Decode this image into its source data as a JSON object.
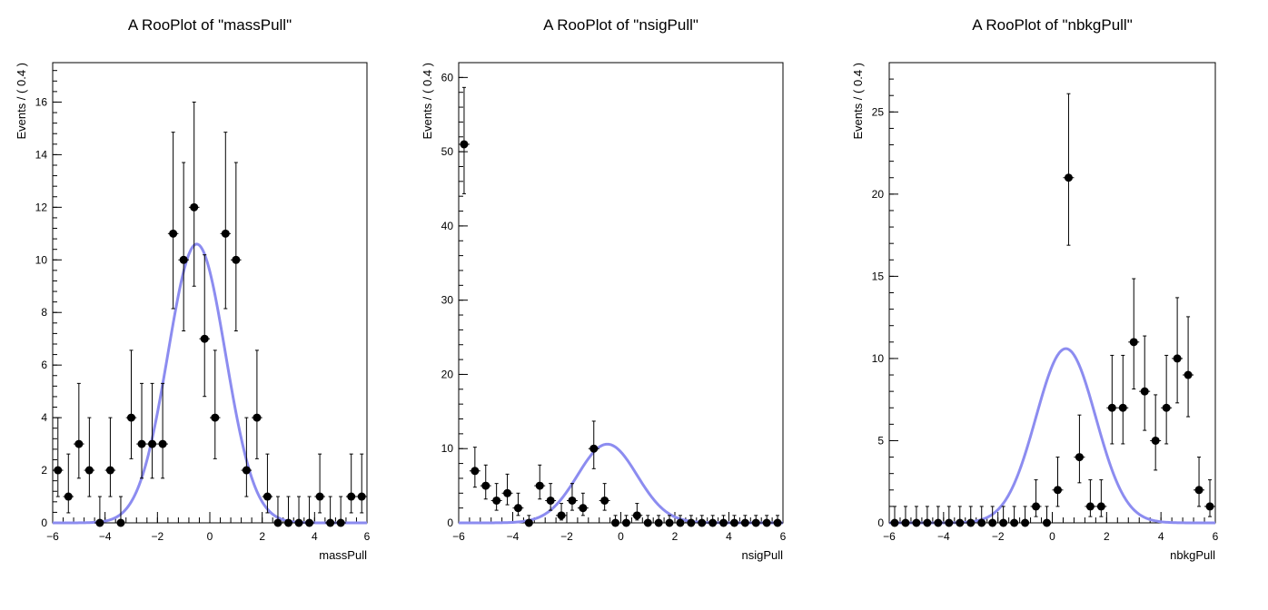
{
  "chart_data": [
    {
      "type": "scatter",
      "title": "A RooPlot of \"massPull\"",
      "xlabel": "massPull",
      "ylabel": "Events / ( 0.4 )",
      "xlim": [
        -6,
        6
      ],
      "ylim": [
        0,
        17.5
      ],
      "xticks": [
        -6,
        -4,
        -2,
        0,
        2,
        4,
        6
      ],
      "yticks": [
        0,
        2,
        4,
        6,
        8,
        10,
        12,
        14,
        16
      ],
      "bin_width": 0.4,
      "series": [
        {
          "kind": "data",
          "x": [
            -5.8,
            -5.4,
            -5.0,
            -4.6,
            -4.2,
            -3.8,
            -3.4,
            -3.0,
            -2.6,
            -2.2,
            -1.8,
            -1.4,
            -1.0,
            -0.6,
            -0.2,
            0.2,
            0.6,
            1.0,
            1.4,
            1.8,
            2.2,
            2.6,
            3.0,
            3.4,
            3.8,
            4.2,
            4.6,
            5.0,
            5.4,
            5.8
          ],
          "y": [
            2,
            1,
            3,
            2,
            0,
            2,
            0,
            4,
            3,
            3,
            3,
            11,
            10,
            12,
            7,
            4,
            11,
            10,
            2,
            4,
            1,
            0,
            0,
            0,
            0,
            1,
            0,
            0,
            1,
            1
          ]
        },
        {
          "kind": "curve",
          "shape": "gaussian",
          "peak": 10.6,
          "mean": -0.5,
          "sigma": 1.1
        }
      ]
    },
    {
      "type": "scatter",
      "title": "A RooPlot of \"nsigPull\"",
      "xlabel": "nsigPull",
      "ylabel": "Events / ( 0.4 )",
      "xlim": [
        -6,
        6
      ],
      "ylim": [
        0,
        62
      ],
      "xticks": [
        -6,
        -4,
        -2,
        0,
        2,
        4,
        6
      ],
      "yticks": [
        0,
        10,
        20,
        30,
        40,
        50,
        60
      ],
      "bin_width": 0.4,
      "series": [
        {
          "kind": "data",
          "x": [
            -5.8,
            -5.4,
            -5.0,
            -4.6,
            -4.2,
            -3.8,
            -3.4,
            -3.0,
            -2.6,
            -2.2,
            -1.8,
            -1.4,
            -1.0,
            -0.6,
            -0.2,
            0.2,
            0.6,
            1.0,
            1.4,
            1.8,
            2.2,
            2.6,
            3.0,
            3.4,
            3.8,
            4.2,
            4.6,
            5.0,
            5.4,
            5.8
          ],
          "y": [
            51,
            7,
            5,
            3,
            4,
            2,
            0,
            5,
            3,
            1,
            3,
            2,
            10,
            3,
            0,
            0,
            1,
            0,
            0,
            0,
            0,
            0,
            0,
            0,
            0,
            0,
            0,
            0,
            0,
            0
          ]
        },
        {
          "kind": "curve",
          "shape": "gaussian",
          "peak": 10.6,
          "mean": -0.5,
          "sigma": 1.1
        }
      ]
    },
    {
      "type": "scatter",
      "title": "A RooPlot of \"nbkgPull\"",
      "xlabel": "nbkgPull",
      "ylabel": "Events / ( 0.4 )",
      "xlim": [
        -6,
        6
      ],
      "ylim": [
        0,
        28
      ],
      "xticks": [
        -6,
        -4,
        -2,
        0,
        2,
        4,
        6
      ],
      "yticks": [
        0,
        5,
        10,
        15,
        20,
        25
      ],
      "bin_width": 0.4,
      "series": [
        {
          "kind": "data",
          "x": [
            -5.8,
            -5.4,
            -5.0,
            -4.6,
            -4.2,
            -3.8,
            -3.4,
            -3.0,
            -2.6,
            -2.2,
            -1.8,
            -1.4,
            -1.0,
            -0.6,
            -0.2,
            0.2,
            0.6,
            1.0,
            1.4,
            1.8,
            2.2,
            2.6,
            3.0,
            3.4,
            3.8,
            4.2,
            4.6,
            5.0,
            5.4,
            5.8
          ],
          "y": [
            0,
            0,
            0,
            0,
            0,
            0,
            0,
            0,
            0,
            0,
            0,
            0,
            0,
            1,
            0,
            2,
            21,
            4,
            1,
            1,
            7,
            7,
            11,
            8,
            5,
            7,
            10,
            9,
            2,
            1
          ]
        },
        {
          "kind": "curve",
          "shape": "gaussian",
          "peak": 10.6,
          "mean": 0.5,
          "sigma": 1.1
        }
      ]
    }
  ],
  "colors": {
    "curve": "#8c8cf0",
    "points": "#000000",
    "frame": "#000000",
    "background": "#ffffff"
  }
}
